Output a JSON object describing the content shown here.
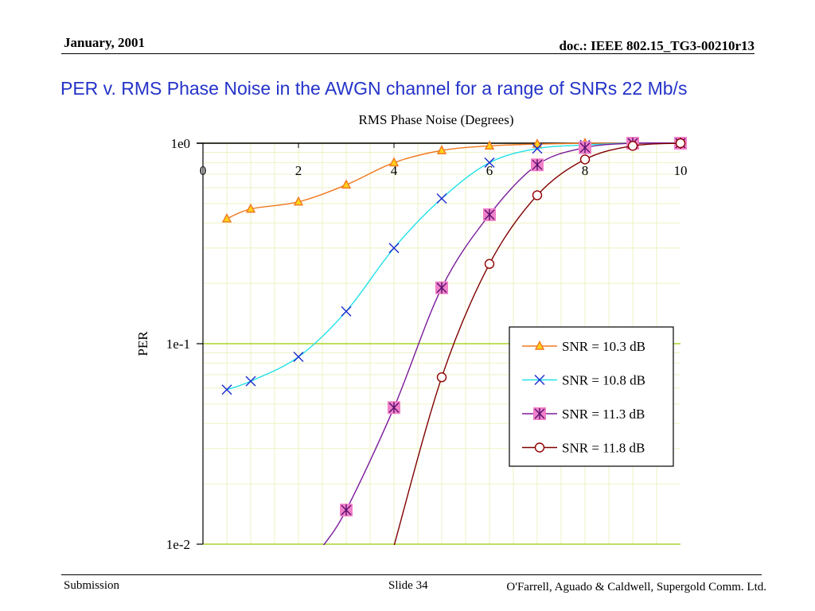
{
  "header": {
    "date": "January, 2001",
    "doc": "doc.: IEEE 802.15_TG3-00210r13"
  },
  "slide_title": "PER v. RMS Phase Noise in the AWGN channel for a range of SNRs 22 Mb/s",
  "footer": {
    "left": "Submission",
    "center": "Slide 34",
    "right": "O'Farrell, Aguado & Caldwell, Supergold Comm. Ltd."
  },
  "colors": {
    "title": "#2433c8",
    "major_grid": "#99cc00",
    "minor_grid": "#eef2c4"
  },
  "chart_data": {
    "type": "line",
    "title": "",
    "xlabel": "RMS Phase Noise (Degrees)",
    "ylabel": "PER",
    "x_ticks": [
      "0",
      "2",
      "4",
      "6",
      "8",
      "10"
    ],
    "y_ticks": [
      "1e0",
      "1e-1",
      "1e-2"
    ],
    "xlim": [
      0,
      10
    ],
    "ylim": [
      0.01,
      1
    ],
    "y_scale": "log",
    "x_axis_position": "top",
    "grid": true,
    "legend_position": "right",
    "series": [
      {
        "name": "SNR = 10.3 dB",
        "color": "#f07820",
        "marker": "triangle",
        "x": [
          0.5,
          1,
          2,
          3,
          4,
          5,
          6,
          7,
          8,
          9,
          10
        ],
        "y": [
          0.42,
          0.47,
          0.51,
          0.62,
          0.8,
          0.92,
          0.97,
          0.99,
          1.0,
          1.0,
          1.0
        ]
      },
      {
        "name": "SNR = 10.8 dB",
        "color": "#22e0e8",
        "marker": "x",
        "x": [
          0.5,
          1,
          2,
          3,
          4,
          5,
          6,
          7,
          8,
          9,
          10
        ],
        "y": [
          0.059,
          0.065,
          0.086,
          0.145,
          0.3,
          0.53,
          0.8,
          0.94,
          0.98,
          1.0,
          1.0
        ]
      },
      {
        "name": "SNR = 11.3 dB",
        "color": "#7a1a9a",
        "marker": "starsquare",
        "x": [
          2.5,
          3,
          4,
          5,
          6,
          7,
          8,
          9,
          10
        ],
        "y": [
          0.0097,
          0.0148,
          0.048,
          0.19,
          0.44,
          0.78,
          0.95,
          1.0,
          1.0
        ]
      },
      {
        "name": "SNR = 11.8 dB",
        "color": "#800000",
        "marker": "circle",
        "x": [
          4,
          5,
          6,
          7,
          8,
          9,
          10
        ],
        "y": [
          0.0098,
          0.068,
          0.25,
          0.55,
          0.83,
          0.97,
          1.0
        ]
      }
    ]
  }
}
